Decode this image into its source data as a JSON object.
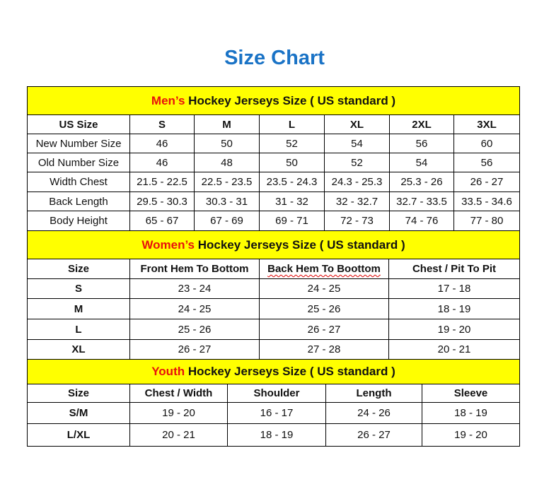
{
  "title": "Size Chart",
  "colors": {
    "title": "#1a73c6",
    "band": "#ffff00",
    "accent_red": "#e8120c"
  },
  "men": {
    "prefix": "Men’s",
    "suffix": " Hockey Jerseys Size ( US standard )",
    "headers": [
      "US Size",
      "S",
      "M",
      "L",
      "XL",
      "2XL",
      "3XL"
    ],
    "rows": [
      [
        "New Number Size",
        "46",
        "50",
        "52",
        "54",
        "56",
        "60"
      ],
      [
        "Old Number Size",
        "46",
        "48",
        "50",
        "52",
        "54",
        "56"
      ],
      [
        "Width Chest",
        "21.5 - 22.5",
        "22.5 - 23.5",
        "23.5 - 24.3",
        "24.3 - 25.3",
        "25.3 - 26",
        "26 - 27"
      ],
      [
        "Back Length",
        "29.5 - 30.3",
        "30.3 - 31",
        "31 - 32",
        "32 - 32.7",
        "32.7 - 33.5",
        "33.5 - 34.6"
      ],
      [
        "Body Height",
        "65 - 67",
        "67 - 69",
        "69 - 71",
        "72 - 73",
        "74 - 76",
        "77 - 80"
      ]
    ]
  },
  "women": {
    "prefix": "Women’s",
    "suffix": " Hockey Jerseys Size ( US standard )",
    "headers": [
      "Size",
      "Front Hem To Bottom",
      "Back Hem To Boottom",
      "Chest / Pit To Pit"
    ],
    "rows": [
      [
        "S",
        "23 - 24",
        "24 - 25",
        "17 - 18"
      ],
      [
        "M",
        "24 - 25",
        "25 - 26",
        "18 - 19"
      ],
      [
        "L",
        "25 - 26",
        "26 - 27",
        "19 - 20"
      ],
      [
        "XL",
        "26 - 27",
        "27 - 28",
        "20 - 21"
      ]
    ]
  },
  "youth": {
    "prefix": "Youth",
    "suffix": " Hockey Jerseys Size ( US standard )",
    "headers": [
      "Size",
      "Chest / Width",
      "Shoulder",
      "Length",
      "Sleeve"
    ],
    "rows": [
      [
        "S/M",
        "19 - 20",
        "16 - 17",
        "24 - 26",
        "18 - 19"
      ],
      [
        "L/XL",
        "20 - 21",
        "18 - 19",
        "26 - 27",
        "19 - 20"
      ]
    ]
  }
}
